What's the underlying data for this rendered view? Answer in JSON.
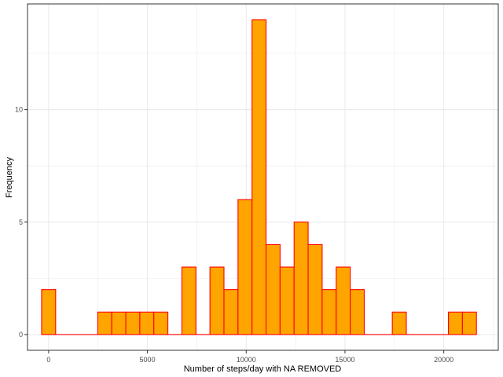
{
  "chart_data": {
    "type": "bar",
    "title": "",
    "xlabel": "Number of steps/day with NA REMOVED",
    "ylabel": "Frequency",
    "x_ticks": [
      0,
      5000,
      10000,
      15000,
      20000
    ],
    "y_ticks": [
      0,
      5,
      10
    ],
    "xlim": [
      -1070,
      22760
    ],
    "ylim": [
      -0.7,
      14.7
    ],
    "bin_width": 710,
    "bin_centers": [
      0,
      710,
      1420,
      2130,
      2840,
      3550,
      4260,
      4970,
      5680,
      6390,
      7100,
      7810,
      8520,
      9230,
      9940,
      10650,
      11360,
      12070,
      12780,
      13490,
      14200,
      14910,
      15620,
      16330,
      17040,
      17750,
      18460,
      19170,
      19880,
      20590,
      21300
    ],
    "values": [
      2,
      0,
      0,
      0,
      1,
      1,
      1,
      1,
      1,
      0,
      3,
      0,
      3,
      2,
      6,
      14,
      4,
      3,
      5,
      4,
      2,
      3,
      2,
      0,
      0,
      1,
      0,
      0,
      0,
      1,
      1
    ],
    "grid": true,
    "colors": {
      "fill": "#FFA500",
      "stroke": "#FF0000",
      "grid": "#EBEBEB",
      "panel_border": "#333333"
    }
  }
}
